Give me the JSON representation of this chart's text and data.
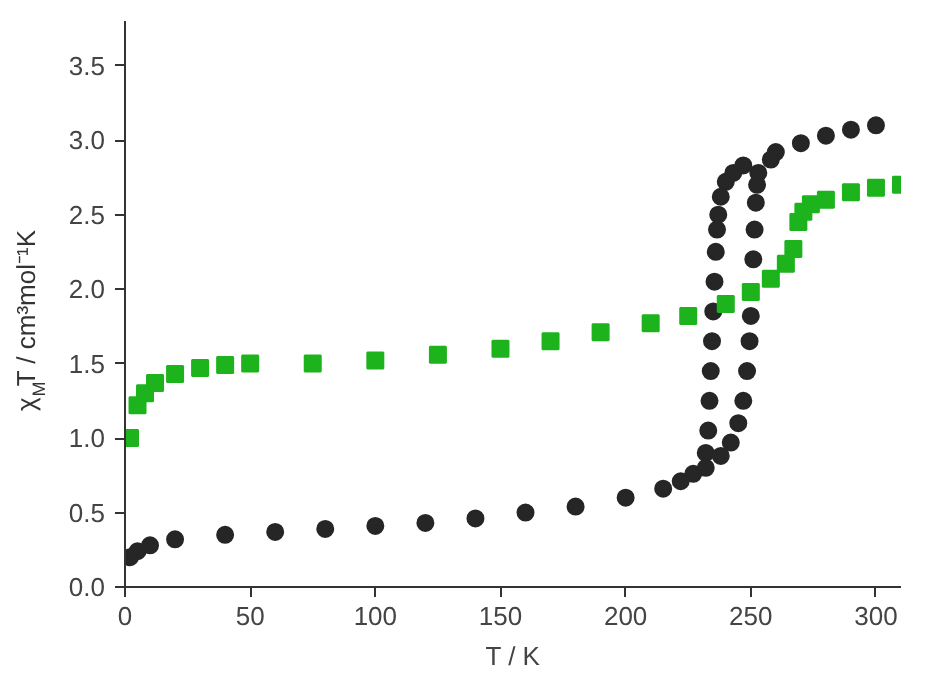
{
  "chart_data": {
    "type": "scatter",
    "xlabel": "T / K",
    "ylabel": "χ$_{M}$T / cm³mol⁻¹K",
    "xlim": [
      0,
      310
    ],
    "ylim": [
      0,
      3.8
    ],
    "xticks": [
      0,
      50,
      100,
      150,
      200,
      250,
      300
    ],
    "yticks": [
      {
        "value": 0,
        "label": "0.0"
      },
      0.5,
      {
        "value": 1,
        "label": "1.0"
      },
      1.5,
      {
        "value": 2,
        "label": "2.0"
      },
      2.5,
      {
        "value": 3,
        "label": "3.0"
      },
      3.5
    ],
    "grid": false,
    "series": [
      {
        "color": "#262626",
        "marker": "circle",
        "x": [
          300,
          290,
          280,
          270,
          260,
          247,
          243,
          240,
          238,
          237,
          236.5,
          236,
          235.5,
          235,
          234.5,
          234,
          233.5,
          233,
          232,
          227,
          222,
          215,
          200,
          180,
          160,
          140,
          120,
          100,
          80,
          60,
          40,
          20,
          10,
          5,
          2
        ],
        "values": [
          3.1,
          3.07,
          3.03,
          2.98,
          2.92,
          2.83,
          2.78,
          2.72,
          2.62,
          2.5,
          2.4,
          2.25,
          2.05,
          1.85,
          1.65,
          1.45,
          1.25,
          1.05,
          0.9,
          0.76,
          0.71,
          0.66,
          0.6,
          0.54,
          0.5,
          0.46,
          0.43,
          0.41,
          0.39,
          0.37,
          0.35,
          0.32,
          0.28,
          0.24,
          0.2
        ]
      },
      {
        "color": "#262626",
        "marker": "circle",
        "x": [
          232,
          238,
          242,
          245,
          247,
          248.5,
          249.5,
          250,
          251,
          251.5,
          252,
          252.5,
          253,
          258
        ],
        "values": [
          0.8,
          0.88,
          0.97,
          1.1,
          1.25,
          1.45,
          1.65,
          1.82,
          2.2,
          2.4,
          2.58,
          2.7,
          2.78,
          2.87
        ]
      },
      {
        "color": "#1db31d",
        "marker": "square",
        "x": [
          2,
          5,
          8,
          12,
          20,
          30,
          40,
          50,
          75,
          100,
          125,
          150,
          170,
          190,
          210,
          225,
          240,
          250,
          258,
          264,
          267,
          269,
          271,
          274,
          280,
          290,
          300,
          310
        ],
        "values": [
          1.0,
          1.22,
          1.3,
          1.37,
          1.43,
          1.47,
          1.49,
          1.5,
          1.5,
          1.52,
          1.56,
          1.6,
          1.65,
          1.71,
          1.77,
          1.82,
          1.9,
          1.98,
          2.07,
          2.17,
          2.27,
          2.45,
          2.52,
          2.57,
          2.6,
          2.65,
          2.68,
          2.7
        ]
      }
    ]
  }
}
